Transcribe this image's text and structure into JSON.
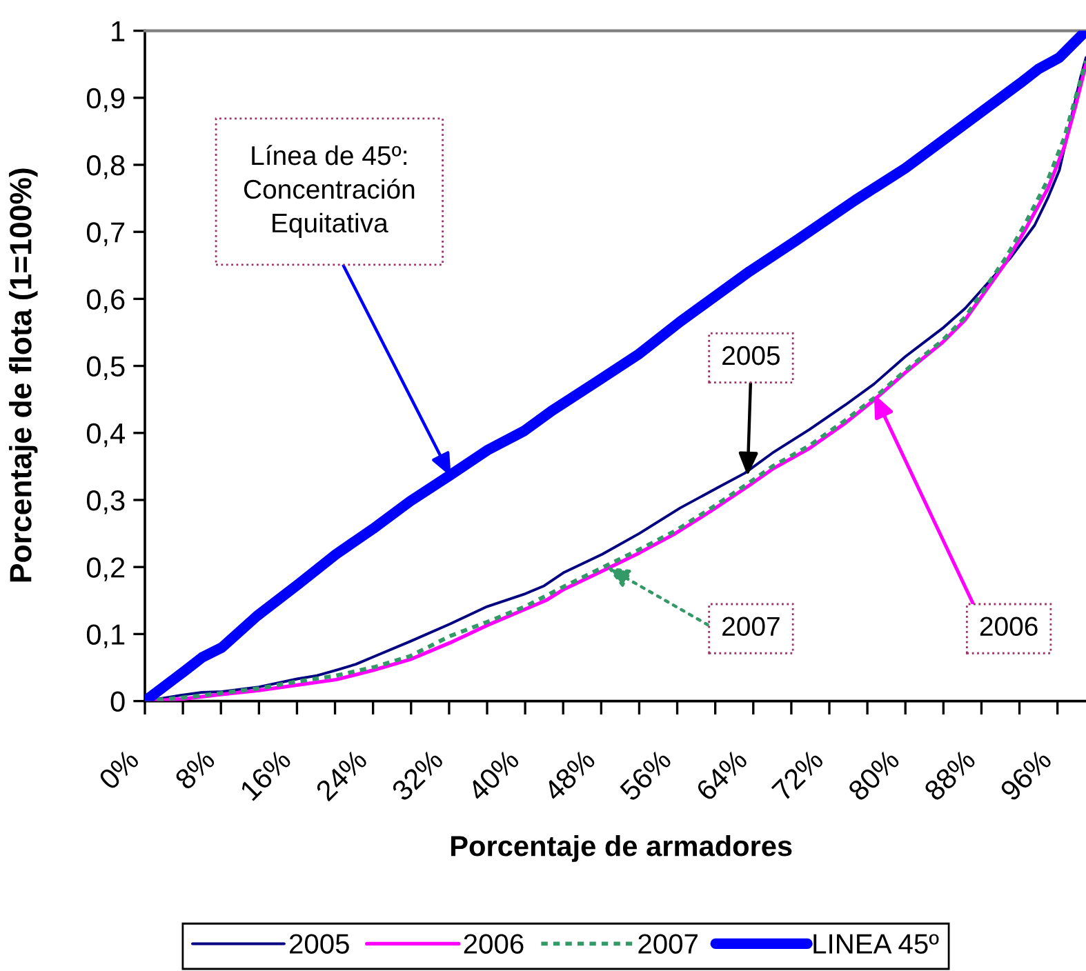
{
  "chart_data": {
    "type": "line",
    "xlabel": "Porcentaje de armadores",
    "ylabel": "Porcentaje de flota (1=100%)",
    "xlim": [
      0,
      99
    ],
    "ylim": [
      0,
      1
    ],
    "xticks": [
      {
        "value": 0,
        "label": "0%"
      },
      {
        "value": 4,
        "label": null
      },
      {
        "value": 8,
        "label": "8%"
      },
      {
        "value": 12,
        "label": null
      },
      {
        "value": 16,
        "label": "16%"
      },
      {
        "value": 20,
        "label": null
      },
      {
        "value": 24,
        "label": "24%"
      },
      {
        "value": 28,
        "label": null
      },
      {
        "value": 32,
        "label": "32%"
      },
      {
        "value": 36,
        "label": null
      },
      {
        "value": 40,
        "label": "40%"
      },
      {
        "value": 44,
        "label": null
      },
      {
        "value": 48,
        "label": "48%"
      },
      {
        "value": 52,
        "label": null
      },
      {
        "value": 56,
        "label": "56%"
      },
      {
        "value": 60,
        "label": null
      },
      {
        "value": 64,
        "label": "64%"
      },
      {
        "value": 68,
        "label": null
      },
      {
        "value": 72,
        "label": "72%"
      },
      {
        "value": 76,
        "label": null
      },
      {
        "value": 80,
        "label": "80%"
      },
      {
        "value": 84,
        "label": null
      },
      {
        "value": 88,
        "label": "88%"
      },
      {
        "value": 92,
        "label": null
      },
      {
        "value": 96,
        "label": "96%"
      }
    ],
    "yticks": [
      0,
      {
        "value": 0.1,
        "label": "0,1"
      },
      {
        "value": 0.2,
        "label": "0,2"
      },
      {
        "value": 0.3,
        "label": "0,3"
      },
      {
        "value": 0.4,
        "label": "0,4"
      },
      {
        "value": 0.5,
        "label": "0,5"
      },
      {
        "value": 0.6,
        "label": "0,6"
      },
      {
        "value": 0.7,
        "label": "0,7"
      },
      {
        "value": 0.8,
        "label": "0,8"
      },
      {
        "value": 0.9,
        "label": "0,9"
      },
      1
    ],
    "legend": "bottom",
    "series": [
      {
        "name": "2005",
        "color": "#000080",
        "line_style": "solid",
        "x": [
          0,
          3.9,
          6,
          8.1,
          12,
          16,
          18.1,
          20.1,
          22.2,
          24.2,
          27.9,
          32.1,
          36,
          40,
          42,
          44.1,
          48.1,
          52,
          56.3,
          60.2,
          63.1,
          66,
          69.9,
          73.7,
          76.7,
          80,
          83.9,
          86.3,
          88.7,
          91.1,
          93.6,
          95,
          96.2,
          97.4,
          98.4,
          99
        ],
        "values": [
          0,
          0.009,
          0.013,
          0.014,
          0.021,
          0.033,
          0.038,
          0.046,
          0.055,
          0.067,
          0.089,
          0.115,
          0.141,
          0.16,
          0.172,
          0.192,
          0.219,
          0.25,
          0.288,
          0.318,
          0.34,
          0.37,
          0.405,
          0.442,
          0.473,
          0.514,
          0.556,
          0.586,
          0.624,
          0.662,
          0.71,
          0.751,
          0.792,
          0.867,
          0.929,
          0.96
        ]
      },
      {
        "name": "2006",
        "color": "#ff00ff",
        "line_style": "solid",
        "x": [
          0,
          3.9,
          8.1,
          12,
          16,
          20.1,
          24,
          27.9,
          32.1,
          36,
          40,
          42.3,
          44.1,
          48.1,
          52,
          55.8,
          59.7,
          63.6,
          66,
          69.9,
          73.7,
          76.7,
          80,
          83.9,
          86.3,
          88.2,
          90.6,
          92.6,
          95,
          96.7,
          97.9,
          99
        ],
        "values": [
          0,
          0.003,
          0.01,
          0.016,
          0.024,
          0.032,
          0.046,
          0.062,
          0.087,
          0.113,
          0.137,
          0.151,
          0.167,
          0.194,
          0.221,
          0.25,
          0.285,
          0.322,
          0.346,
          0.377,
          0.415,
          0.449,
          0.49,
          0.535,
          0.569,
          0.607,
          0.655,
          0.703,
          0.765,
          0.826,
          0.888,
          0.95
        ]
      },
      {
        "name": "2007",
        "color": "#339966",
        "line_style": "dotted",
        "x": [
          0,
          3.9,
          8.1,
          12,
          16,
          20.1,
          24.2,
          27.9,
          32.1,
          36,
          40,
          44.1,
          48.1,
          52,
          55.8,
          59.7,
          63.6,
          66,
          69.9,
          73.7,
          76.7,
          80,
          83.9,
          86.3,
          88.2,
          90.6,
          92.6,
          95,
          96.7,
          97.9,
          99
        ],
        "values": [
          0,
          0.005,
          0.012,
          0.019,
          0.029,
          0.038,
          0.051,
          0.067,
          0.097,
          0.118,
          0.141,
          0.171,
          0.199,
          0.226,
          0.254,
          0.289,
          0.326,
          0.35,
          0.381,
          0.419,
          0.452,
          0.493,
          0.538,
          0.573,
          0.612,
          0.662,
          0.712,
          0.778,
          0.84,
          0.9,
          0.955
        ]
      },
      {
        "name": "LINEA 45º",
        "color": "#0000ff",
        "line_style": "solid",
        "x": [
          0,
          4.1,
          6,
          8.1,
          11.8,
          16.2,
          20.1,
          24,
          27.9,
          32,
          36,
          39.9,
          42.8,
          47.6,
          52,
          56.3,
          63.6,
          68.4,
          74.7,
          80,
          86.3,
          92.1,
          94,
          96.2,
          99
        ],
        "values": [
          0,
          0.044,
          0.065,
          0.08,
          0.127,
          0.175,
          0.219,
          0.257,
          0.298,
          0.336,
          0.374,
          0.403,
          0.433,
          0.477,
          0.518,
          0.566,
          0.641,
          0.686,
          0.747,
          0.795,
          0.861,
          0.922,
          0.943,
          0.96,
          1.0
        ]
      }
    ],
    "annotations": [
      {
        "text": "Línea de 45º:\nConcentración\nEquitativa",
        "x": 32.2,
        "y": 0.335
      },
      {
        "text": "2005",
        "x": 63.4,
        "y": 0.336
      },
      {
        "text": "2007",
        "x": 48.6,
        "y": 0.2
      },
      {
        "text": "2006",
        "x": 76.7,
        "y": 0.458
      }
    ]
  }
}
